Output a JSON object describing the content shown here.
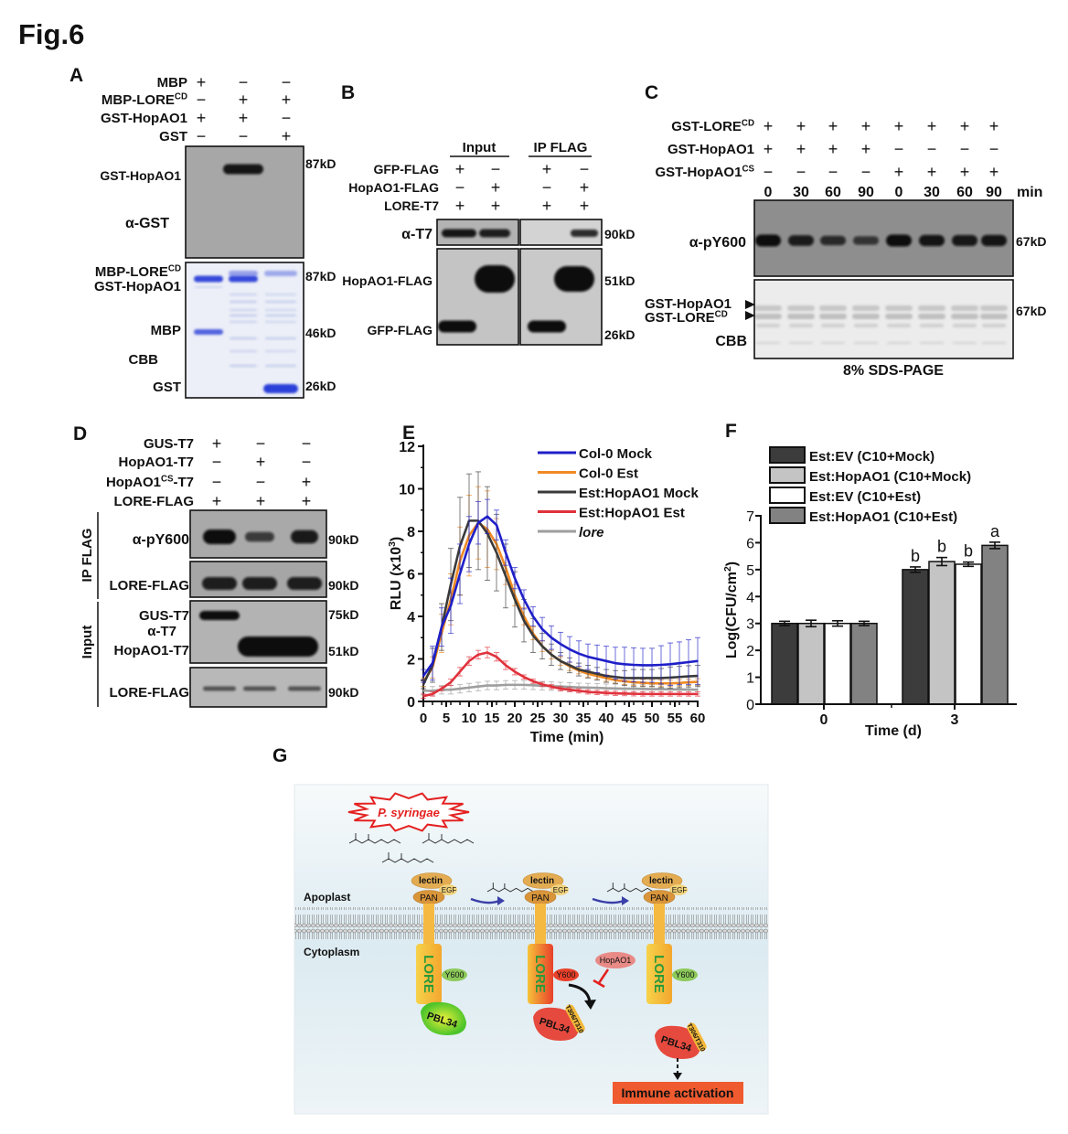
{
  "figure_label": "Fig.6",
  "panel_a": {
    "label": "A",
    "rows": [
      {
        "name": {
          "text": "MBP"
        },
        "signs": [
          "+",
          "−",
          "−"
        ]
      },
      {
        "name": {
          "text": "MBP-LORE",
          "sup": "CD"
        },
        "signs": [
          "−",
          "+",
          "+"
        ]
      },
      {
        "name": {
          "text": "GST-HopAO1"
        },
        "signs": [
          "+",
          "+",
          "−"
        ]
      },
      {
        "name": {
          "text": "GST"
        },
        "signs": [
          "−",
          "−",
          "+"
        ]
      }
    ],
    "western": {
      "band_label": "GST-HopAO1",
      "antibody": "α-GST",
      "marker": "87kD"
    },
    "cbb": {
      "labels": [
        {
          "text": "MBP-LORE",
          "sup": "CD"
        },
        {
          "text": "GST-HopAO1"
        },
        {
          "text": "MBP"
        },
        {
          "text": "CBB"
        },
        {
          "text": "GST"
        }
      ],
      "markers": [
        "87kD",
        "46kD",
        "26kD"
      ]
    }
  },
  "panel_b": {
    "label": "B",
    "groups": [
      "Input",
      "IP FLAG"
    ],
    "rows": [
      {
        "name": {
          "text": "GFP-FLAG"
        },
        "signs": [
          "+",
          "−",
          "+",
          "−"
        ]
      },
      {
        "name": {
          "text": "HopAO1-FLAG"
        },
        "signs": [
          "−",
          "+",
          "−",
          "+"
        ]
      },
      {
        "name": {
          "text": "LORE-T7"
        },
        "signs": [
          "+",
          "+",
          "+",
          "+"
        ]
      }
    ],
    "blot_labels": [
      "α-T7",
      "HopAO1-FLAG",
      "GFP-FLAG"
    ],
    "markers": [
      "90kD",
      "51kD",
      "26kD"
    ]
  },
  "panel_c": {
    "label": "C",
    "rows": [
      {
        "name": {
          "text": "GST-LORE",
          "sup": "CD"
        },
        "signs": [
          "+",
          "+",
          "+",
          "+",
          "+",
          "+",
          "+",
          "+"
        ]
      },
      {
        "name": {
          "text": "GST-HopAO1"
        },
        "signs": [
          "+",
          "+",
          "+",
          "+",
          "−",
          "−",
          "−",
          "−"
        ]
      },
      {
        "name": {
          "text": "GST-HopAO1",
          "sup": "CS"
        },
        "signs": [
          "−",
          "−",
          "−",
          "−",
          "+",
          "+",
          "+",
          "+"
        ]
      }
    ],
    "times": [
      "0",
      "30",
      "60",
      "90",
      "0",
      "30",
      "60",
      "90"
    ],
    "time_unit": "min",
    "antibody": "α-pY600",
    "py600_band_intensity": [
      1.0,
      0.8,
      0.6,
      0.45,
      1.0,
      0.9,
      0.85,
      0.9
    ],
    "marker_top": "67kD",
    "cbb_labels": [
      {
        "text": "GST-HopAO1"
      },
      {
        "text": "GST-LORE",
        "sup": "CD"
      }
    ],
    "cbb": "CBB",
    "marker_bottom": "67kD",
    "gel_note": "8% SDS-PAGE"
  },
  "panel_d": {
    "label": "D",
    "rows": [
      {
        "name": {
          "text": "GUS-T7"
        },
        "signs": [
          "+",
          "−",
          "−"
        ]
      },
      {
        "name": {
          "text": "HopAO1-T7"
        },
        "signs": [
          "−",
          "+",
          "−"
        ]
      },
      {
        "name": {
          "text": "HopAO1",
          "sup": "CS",
          "suffix": "-T7"
        },
        "signs": [
          "−",
          "−",
          "+"
        ]
      },
      {
        "name": {
          "text": "LORE-FLAG"
        },
        "signs": [
          "+",
          "+",
          "+"
        ]
      }
    ],
    "sections": [
      "IP FLAG",
      "Input"
    ],
    "blot_labels": [
      "α-pY600",
      "LORE-FLAG",
      "GUS-T7",
      "α-T7",
      "HopAO1-T7",
      "LORE-FLAG"
    ],
    "py600_band_intensity": [
      1.0,
      0.45,
      0.85
    ],
    "markers": [
      "90kD",
      "90kD",
      "75kD",
      "51kD",
      "90kD"
    ]
  },
  "panel_e": {
    "label": "E"
  },
  "panel_f": {
    "label": "F"
  },
  "chart_data": [
    {
      "type": "line",
      "title": "",
      "xlabel": "Time (min)",
      "ylabel": {
        "text": "RLU (x10",
        "sup": "3",
        "suffix": ")"
      },
      "xlim": [
        0,
        60
      ],
      "ylim": [
        0,
        12
      ],
      "xticks": [
        "0",
        "5",
        "10",
        "15",
        "20",
        "25",
        "30",
        "35",
        "40",
        "45",
        "50",
        "55",
        "60"
      ],
      "yticks": [
        "0",
        "2",
        "4",
        "6",
        "8",
        "10",
        "12"
      ],
      "legend_position": "top-right",
      "x": [
        0,
        2,
        4,
        6,
        8,
        10,
        12,
        14,
        16,
        18,
        20,
        22,
        24,
        26,
        28,
        30,
        32,
        34,
        36,
        38,
        40,
        42,
        44,
        46,
        48,
        50,
        52,
        54,
        56,
        58,
        60
      ],
      "series": [
        {
          "name": "lore",
          "italic": true,
          "color": "#9e9e9e",
          "values": [
            0.5,
            0.5,
            0.55,
            0.55,
            0.6,
            0.65,
            0.7,
            0.75,
            0.75,
            0.78,
            0.78,
            0.78,
            0.76,
            0.74,
            0.72,
            0.7,
            0.68,
            0.66,
            0.65,
            0.64,
            0.62,
            0.61,
            0.6,
            0.6,
            0.59,
            0.58,
            0.58,
            0.57,
            0.56,
            0.56,
            0.55
          ],
          "error": [
            0.2,
            0.2,
            0.2,
            0.2,
            0.2,
            0.2,
            0.2,
            0.2,
            0.2,
            0.2,
            0.2,
            0.2,
            0.2,
            0.2,
            0.2,
            0.2,
            0.2,
            0.2,
            0.2,
            0.2,
            0.2,
            0.2,
            0.2,
            0.2,
            0.2,
            0.2,
            0.2,
            0.2,
            0.2,
            0.2,
            0.2
          ]
        },
        {
          "name": "Est:HopAO1 Est",
          "color": "#e0323c",
          "values": [
            0.25,
            0.35,
            0.6,
            0.9,
            1.4,
            1.9,
            2.2,
            2.3,
            2.1,
            1.7,
            1.4,
            1.15,
            0.95,
            0.8,
            0.7,
            0.6,
            0.55,
            0.5,
            0.45,
            0.42,
            0.4,
            0.38,
            0.37,
            0.36,
            0.35,
            0.35,
            0.35,
            0.35,
            0.35,
            0.35,
            0.35
          ],
          "error": [
            0.1,
            0.1,
            0.1,
            0.15,
            0.2,
            0.2,
            0.2,
            0.25,
            0.2,
            0.2,
            0.15,
            0.1,
            0.1,
            0.1,
            0.1,
            0.1,
            0.1,
            0.1,
            0.1,
            0.1,
            0.1,
            0.1,
            0.1,
            0.1,
            0.1,
            0.1,
            0.1,
            0.1,
            0.1,
            0.1,
            0.1
          ]
        },
        {
          "name": "Col-0 Est",
          "color": "#f08a24",
          "values": [
            0.9,
            1.6,
            3.2,
            4.8,
            6.6,
            7.8,
            8.4,
            8.1,
            7.4,
            6.3,
            5.0,
            4.0,
            3.2,
            2.6,
            2.2,
            1.9,
            1.65,
            1.45,
            1.3,
            1.2,
            1.1,
            1.0,
            0.95,
            0.9,
            0.88,
            0.85,
            0.85,
            0.85,
            0.87,
            0.9,
            0.92
          ],
          "error": [
            0.2,
            0.5,
            0.9,
            1.2,
            1.6,
            1.9,
            1.7,
            1.8,
            1.2,
            0.8,
            0.5,
            0.4,
            0.3,
            0.25,
            0.2,
            0.2,
            0.2,
            0.15,
            0.15,
            0.15,
            0.15,
            0.15,
            0.15,
            0.15,
            0.15,
            0.15,
            0.15,
            0.15,
            0.15,
            0.15,
            0.15
          ]
        },
        {
          "name": "Est:HopAO1 Mock",
          "color": "#3a3a3a",
          "values": [
            0.8,
            1.7,
            3.5,
            5.5,
            7.3,
            8.5,
            8.5,
            7.9,
            7.0,
            5.9,
            4.8,
            3.8,
            3.1,
            2.6,
            2.2,
            1.9,
            1.7,
            1.5,
            1.4,
            1.3,
            1.2,
            1.15,
            1.1,
            1.1,
            1.1,
            1.1,
            1.1,
            1.12,
            1.15,
            1.18,
            1.2
          ],
          "error": [
            0.2,
            0.8,
            1.1,
            1.7,
            2.3,
            2.2,
            2.3,
            2.2,
            1.8,
            1.5,
            1.3,
            1.0,
            0.8,
            0.6,
            0.5,
            0.4,
            0.35,
            0.3,
            0.3,
            0.3,
            0.3,
            0.3,
            0.35,
            0.4,
            0.4,
            0.4,
            0.45,
            0.5,
            0.5,
            0.5,
            0.5
          ]
        },
        {
          "name": "Col-0 Mock",
          "color": "#1f1fc8",
          "values": [
            1.2,
            1.8,
            3.5,
            4.5,
            6.0,
            7.4,
            8.4,
            8.7,
            8.3,
            7.0,
            5.8,
            4.8,
            4.0,
            3.4,
            3.0,
            2.7,
            2.45,
            2.25,
            2.1,
            2.0,
            1.9,
            1.8,
            1.75,
            1.72,
            1.7,
            1.7,
            1.72,
            1.75,
            1.8,
            1.85,
            1.9
          ],
          "error": [
            0.3,
            0.8,
            0.9,
            1.3,
            1.4,
            1.3,
            1.0,
            0.8,
            0.7,
            0.6,
            0.5,
            0.45,
            0.45,
            0.55,
            0.55,
            0.55,
            0.6,
            0.6,
            0.6,
            0.65,
            0.7,
            0.75,
            0.8,
            0.8,
            0.8,
            0.8,
            0.9,
            1.0,
            1.0,
            1.05,
            1.1
          ]
        }
      ],
      "legend_order": [
        4,
        2,
        3,
        1,
        0
      ]
    },
    {
      "type": "bar",
      "title": "",
      "xlabel": "Time (d)",
      "ylabel": {
        "text": "Log(CFU/cm",
        "sup": "2",
        "suffix": ")"
      },
      "ylim": [
        0,
        7
      ],
      "yticks": [
        "0",
        "1",
        "2",
        "3",
        "4",
        "5",
        "6",
        "7"
      ],
      "categories": [
        "0",
        "3"
      ],
      "legend_position": "top-left",
      "series": [
        {
          "name": "Est:EV (C10+Mock)",
          "color": "#3c3c3c",
          "values": [
            3.0,
            5.0
          ],
          "error": [
            0.08,
            0.1
          ],
          "letters": [
            "",
            "b"
          ]
        },
        {
          "name": "Est:HopAO1 (C10+Mock)",
          "color": "#c4c4c4",
          "values": [
            3.0,
            5.3
          ],
          "error": [
            0.12,
            0.15
          ],
          "letters": [
            "",
            "b"
          ]
        },
        {
          "name": "Est:EV (C10+Est)",
          "color": "#ffffff",
          "values": [
            3.0,
            5.2
          ],
          "error": [
            0.1,
            0.08
          ],
          "letters": [
            "",
            "b"
          ]
        },
        {
          "name": "Est:HopAO1 (C10+Est)",
          "color": "#828282",
          "values": [
            3.0,
            5.9
          ],
          "error": [
            0.08,
            0.12
          ],
          "letters": [
            "",
            "a"
          ]
        }
      ]
    }
  ],
  "panel_g": {
    "label": "G",
    "pathogen": "P. syringae",
    "apoplast": "Apoplast",
    "cytoplasm": "Cytoplasm",
    "lectin": "lectin",
    "egf": "EGF",
    "pan": "PAN",
    "lore": "LORE",
    "y600": "Y600",
    "pbl34": "PBL34",
    "site": "T306/T310",
    "effector": "HopAO1",
    "outcome": "Immune activation"
  }
}
